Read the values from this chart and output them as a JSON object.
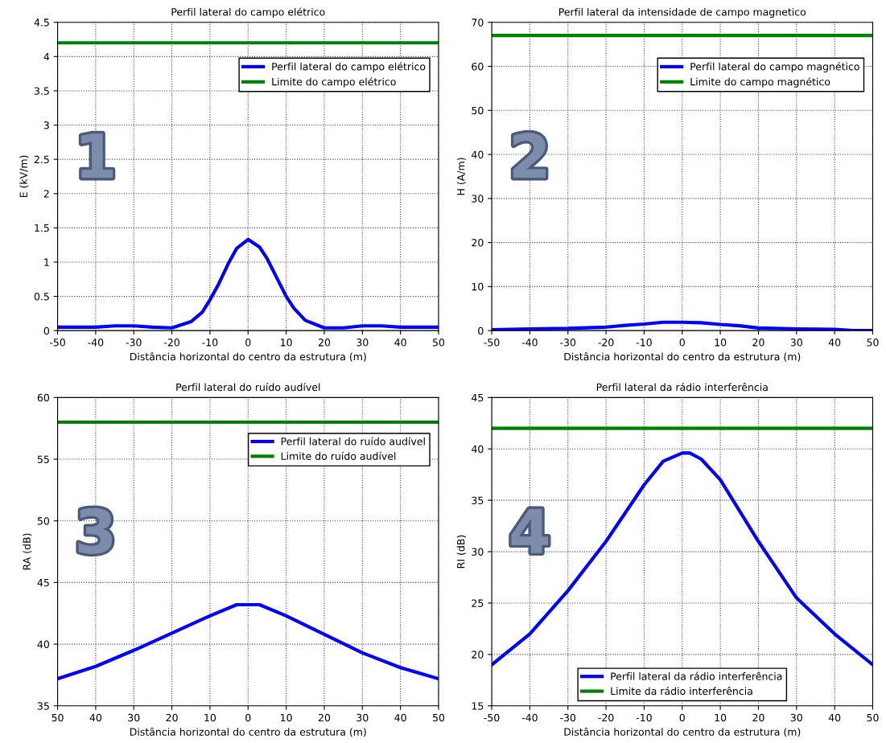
{
  "chart_data": [
    {
      "type": "line",
      "title": "Perfil lateral do campo elétrico",
      "xlabel": "Distância horizontal do centro da estrutura (m)",
      "ylabel": "E (kV/m)",
      "annotations": [
        "1"
      ],
      "legend": "top right",
      "grid": true,
      "line_style": "solid",
      "xlim": [
        -50,
        50
      ],
      "xticks": [
        -50,
        -40,
        -30,
        -20,
        -10,
        0,
        10,
        20,
        30,
        40,
        50
      ],
      "ylim": [
        0,
        4.5
      ],
      "yticks": [
        0,
        0.5,
        1,
        1.5,
        2,
        2.5,
        3,
        3.5,
        4,
        4.5
      ],
      "series": [
        {
          "name": "Perfil lateral do campo elétrico",
          "color": "#0000ff",
          "x": [
            -50,
            -45,
            -40,
            -35,
            -30,
            -25,
            -20,
            -15,
            -12,
            -10,
            -8,
            -5,
            -3,
            0,
            3,
            5,
            8,
            10,
            12,
            15,
            20,
            25,
            30,
            35,
            40,
            45,
            50
          ],
          "values": [
            0.05,
            0.05,
            0.05,
            0.07,
            0.07,
            0.05,
            0.04,
            0.13,
            0.27,
            0.45,
            0.65,
            1.0,
            1.2,
            1.33,
            1.22,
            1.05,
            0.72,
            0.5,
            0.33,
            0.15,
            0.04,
            0.04,
            0.07,
            0.07,
            0.05,
            0.05,
            0.05
          ]
        },
        {
          "name": "Limite do campo elétrico",
          "color": "#008000",
          "x": [
            -50,
            50
          ],
          "values": [
            4.2,
            4.2
          ]
        }
      ]
    },
    {
      "type": "line",
      "title": "Perfil lateral da intensidade de campo magnetico",
      "xlabel": "Distância horizontal do centro da estrutura (m)",
      "ylabel": "H (A/m)",
      "annotations": [
        "2"
      ],
      "legend": "top right",
      "grid": true,
      "line_style": "solid",
      "xlim": [
        -50,
        50
      ],
      "xticks": [
        -50,
        -40,
        -30,
        -20,
        -10,
        0,
        10,
        20,
        30,
        40,
        50
      ],
      "ylim": [
        0,
        70
      ],
      "yticks": [
        0,
        10,
        20,
        30,
        40,
        50,
        60,
        70
      ],
      "series": [
        {
          "name": "Perfil lateral do campo magnético",
          "color": "#0000ff",
          "x": [
            -50,
            -40,
            -30,
            -20,
            -15,
            -10,
            -5,
            0,
            5,
            10,
            15,
            20,
            30,
            40,
            45,
            50
          ],
          "values": [
            0.2,
            0.4,
            0.5,
            0.8,
            1.2,
            1.5,
            1.9,
            1.9,
            1.8,
            1.4,
            1.1,
            0.6,
            0.4,
            0.3,
            0,
            0
          ]
        },
        {
          "name": "Limite do campo magnético",
          "color": "#008000",
          "x": [
            -50,
            50
          ],
          "values": [
            67,
            67
          ]
        }
      ]
    },
    {
      "type": "line",
      "title": "Perfil lateral do ruído audível",
      "xlabel": "Distância horizontal do centro da estrutura (m)",
      "ylabel": "RA (dB)",
      "annotations": [
        "3"
      ],
      "legend": "top right",
      "grid": true,
      "line_style": "solid",
      "xlim": [
        -50,
        50
      ],
      "xticks": [
        {
          "value": -50,
          "label": "50"
        },
        {
          "value": -40,
          "label": "40"
        },
        {
          "value": -30,
          "label": "30"
        },
        {
          "value": -20,
          "label": "20"
        },
        {
          "value": -10,
          "label": "10"
        },
        0,
        10,
        20,
        30,
        40,
        50
      ],
      "ylim": [
        35,
        60
      ],
      "yticks": [
        35,
        40,
        45,
        50,
        55,
        60
      ],
      "series": [
        {
          "name": "Perfil lateral do ruído audível",
          "color": "#0000ff",
          "x": [
            -50,
            -40,
            -30,
            -20,
            -10,
            -3,
            0,
            3,
            10,
            20,
            30,
            40,
            50
          ],
          "values": [
            37.2,
            38.2,
            39.5,
            40.9,
            42.3,
            43.2,
            43.2,
            43.2,
            42.3,
            40.8,
            39.3,
            38.1,
            37.2
          ]
        },
        {
          "name": "Limite do ruído audível",
          "color": "#008000",
          "x": [
            -50,
            50
          ],
          "values": [
            58,
            58
          ]
        }
      ]
    },
    {
      "type": "line",
      "title": "Perfil lateral da rádio interferência",
      "xlabel": "Distância horizontal do centro da estrutura (m)",
      "ylabel": "RI (dB)",
      "annotations": [
        "4"
      ],
      "legend": "bottom",
      "grid": true,
      "line_style": "solid",
      "xlim": [
        -50,
        50
      ],
      "xticks": [
        -50,
        -40,
        -30,
        -20,
        -10,
        0,
        10,
        20,
        30,
        40,
        50
      ],
      "ylim": [
        15,
        45
      ],
      "yticks": [
        15,
        20,
        25,
        30,
        35,
        40,
        45
      ],
      "series": [
        {
          "name": "Perfil lateral da rádio interferência",
          "color": "#0000ff",
          "x": [
            -50,
            -40,
            -30,
            -20,
            -10,
            -5,
            0,
            2,
            5,
            10,
            20,
            30,
            40,
            50
          ],
          "values": [
            19,
            22,
            26.2,
            31,
            36.5,
            38.8,
            39.6,
            39.6,
            39,
            37,
            31,
            25.5,
            22,
            19
          ]
        },
        {
          "name": "Limite da rádio interferência",
          "color": "#008000",
          "x": [
            -50,
            50
          ],
          "values": [
            42,
            42
          ]
        }
      ]
    }
  ]
}
